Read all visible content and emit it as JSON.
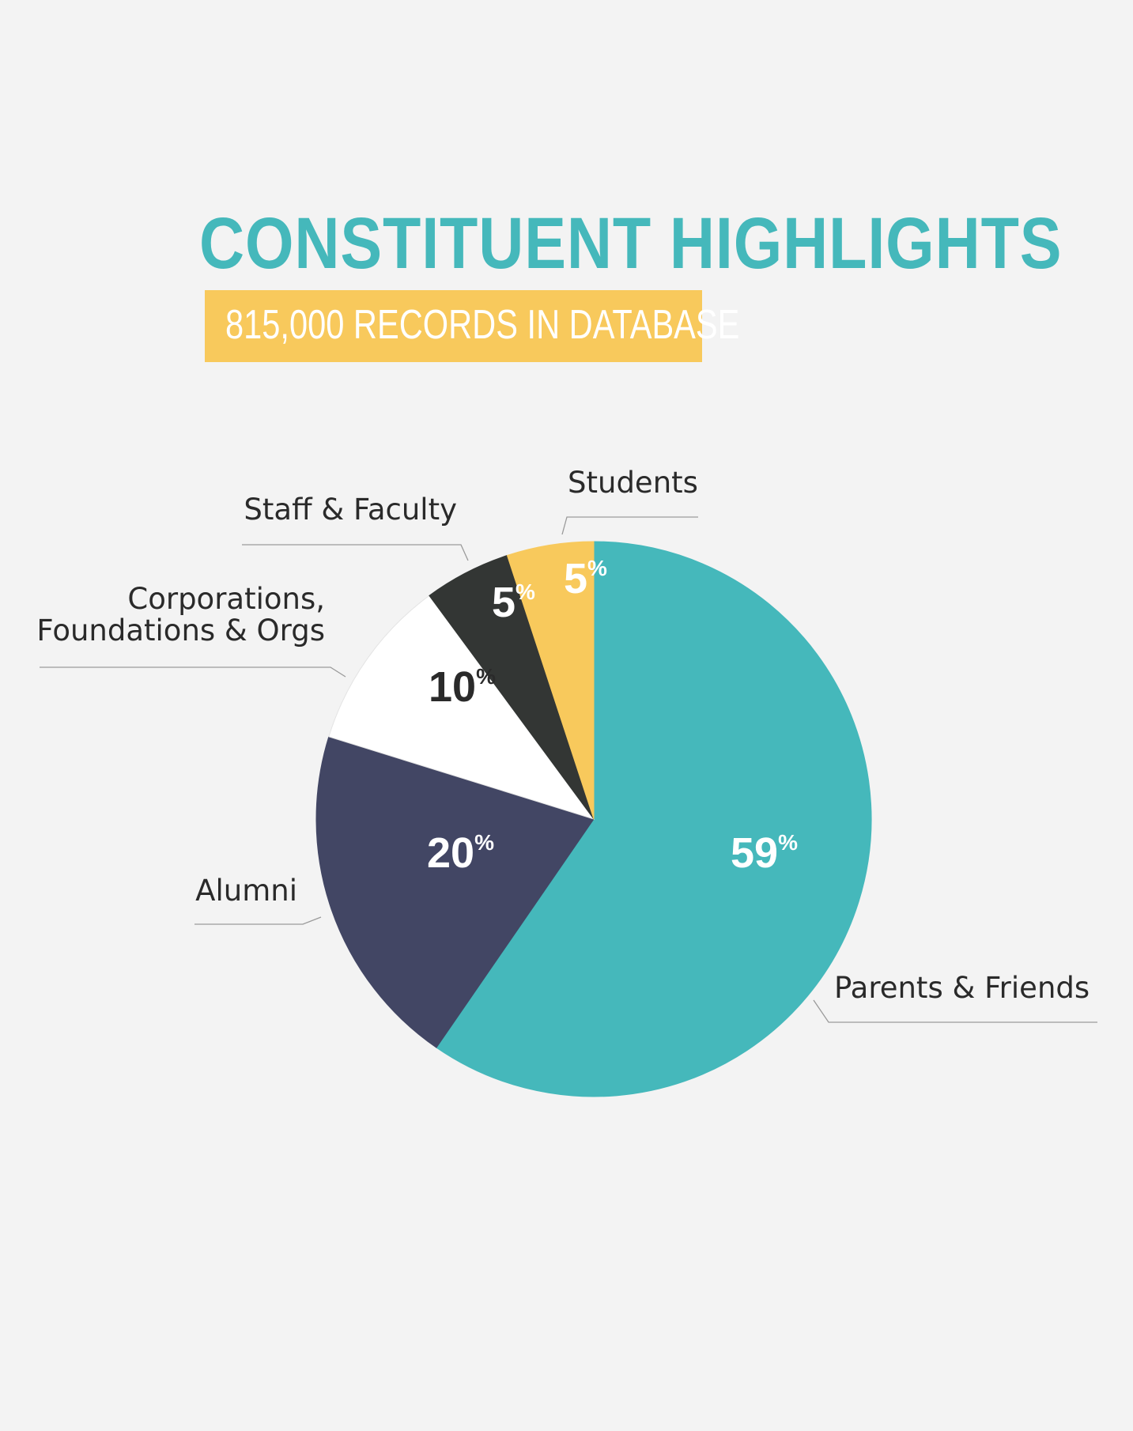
{
  "header": {
    "title": "CONSTITUENT HIGHLIGHTS",
    "subtitle": "815,000 RECORDS IN DATABASE"
  },
  "colors": {
    "accent_teal": "#45b8bb",
    "accent_yellow": "#f8c95c",
    "background": "#f3f3f3"
  },
  "chart_data": {
    "type": "pie",
    "title": "CONSTITUENT HIGHLIGHTS",
    "subtitle": "815,000 RECORDS IN DATABASE",
    "start": "12 o'clock, clockwise",
    "slices": [
      {
        "label": "Parents & Friends",
        "value": 59,
        "value_label": "59",
        "unit": "%",
        "color": "#45b8bb",
        "text_color": "#ffffff"
      },
      {
        "label": "Alumni",
        "value": 20,
        "value_label": "20",
        "unit": "%",
        "color": "#424664",
        "text_color": "#ffffff"
      },
      {
        "label": "Corporations, Foundations & Orgs",
        "label_lines": [
          "Corporations,",
          "Foundations & Orgs"
        ],
        "value": 10,
        "value_label": "10",
        "unit": "%",
        "color": "#ffffff",
        "text_color": "#2a2a2a"
      },
      {
        "label": "Staff & Faculty",
        "value": 5,
        "value_label": "5",
        "unit": "%",
        "color": "#333634",
        "text_color": "#ffffff"
      },
      {
        "label": "Students",
        "value": 5,
        "value_label": "5",
        "unit": "%",
        "color": "#f8c95c",
        "text_color": "#ffffff"
      }
    ]
  }
}
